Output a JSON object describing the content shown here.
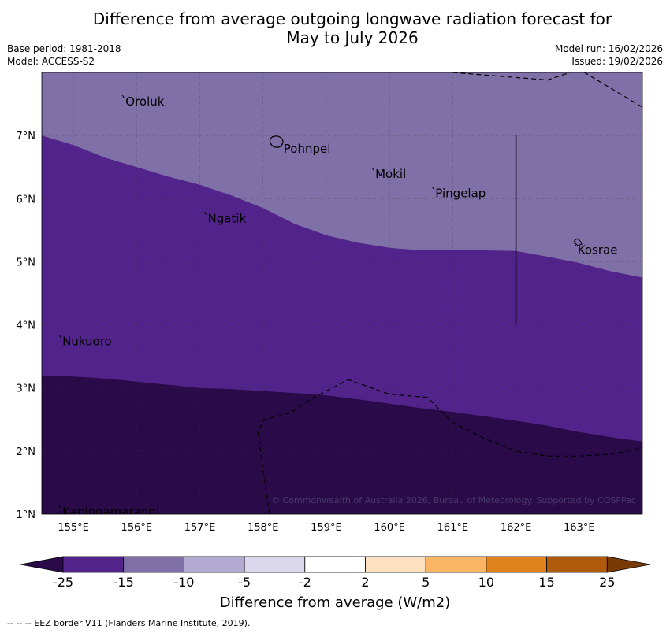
{
  "title": {
    "line1": "Difference from average outgoing longwave radiation forecast for",
    "line2": "May to July 2026"
  },
  "meta": {
    "base_period": "Base period: 1981-2018",
    "model": "Model: ACCESS-S2",
    "model_run": "Model run: 16/02/2026",
    "issued": "Issued: 19/02/2026"
  },
  "axes": {
    "lon_labels": [
      "155°E",
      "156°E",
      "157°E",
      "158°E",
      "159°E",
      "160°E",
      "161°E",
      "162°E",
      "163°E"
    ],
    "lon_values": [
      155,
      156,
      157,
      158,
      159,
      160,
      161,
      162,
      163
    ],
    "lat_labels": [
      "1°N",
      "2°N",
      "3°N",
      "4°N",
      "5°N",
      "6°N",
      "7°N"
    ],
    "lat_values": [
      1,
      2,
      3,
      4,
      5,
      6,
      7
    ],
    "lon_range": [
      154.5,
      164
    ],
    "lat_range": [
      1,
      8
    ]
  },
  "places": [
    {
      "name": "Oroluk",
      "lon": 155.8,
      "lat": 7.6
    },
    {
      "name": "Pohnpei",
      "lon": 158.3,
      "lat": 6.85
    },
    {
      "name": "Mokil",
      "lon": 159.75,
      "lat": 6.45
    },
    {
      "name": "Pingelap",
      "lon": 160.7,
      "lat": 6.15
    },
    {
      "name": "Ngatik",
      "lon": 157.1,
      "lat": 5.75
    },
    {
      "name": "Kosrae",
      "lon": 162.95,
      "lat": 5.25
    },
    {
      "name": "Nukuoro",
      "lon": 154.8,
      "lat": 3.8
    },
    {
      "name": "Kapingamarangi",
      "lon": 154.8,
      "lat": 1.1
    }
  ],
  "copyright": "© Commonwealth of Australia 2026, Bureau of Meteorology. Supported by COSPPac",
  "colorbar": {
    "ticks": [
      "-25",
      "-15",
      "-10",
      "-5",
      "-2",
      "2",
      "5",
      "10",
      "15",
      "25"
    ],
    "colors": [
      "#2b0a4a",
      "#52238a",
      "#7f71a8",
      "#b3aad2",
      "#dad7ec",
      "#ffffff",
      "#fde0bf",
      "#fbb564",
      "#e0831c",
      "#b05a0c",
      "#7a3a06"
    ],
    "label": "Difference from average (W/m2)"
  },
  "chart_data": {
    "type": "map-contour",
    "variable": "Difference from average outgoing longwave radiation (W/m2)",
    "regions": [
      {
        "band": "-15 to -10",
        "color": "#7f71a8",
        "description": "north of boundary A"
      },
      {
        "band": "-25 to -15",
        "color": "#52238a",
        "description": "between boundary A and B"
      },
      {
        "band": "< -25",
        "color": "#2b0a4a",
        "description": "south of boundary B"
      }
    ],
    "boundary_A": {
      "lon": [
        154.5,
        155.0,
        155.5,
        156.0,
        156.5,
        157.0,
        157.5,
        158.0,
        158.5,
        159.0,
        159.5,
        160.0,
        160.5,
        161.0,
        161.5,
        162.0,
        162.5,
        163.0,
        163.5,
        164.0
      ],
      "lat": [
        7.0,
        6.85,
        6.65,
        6.5,
        6.35,
        6.22,
        6.05,
        5.85,
        5.6,
        5.42,
        5.3,
        5.22,
        5.18,
        5.18,
        5.18,
        5.17,
        5.08,
        4.98,
        4.85,
        4.75
      ]
    },
    "boundary_B": {
      "lon": [
        154.5,
        155.0,
        155.5,
        156.0,
        156.5,
        157.0,
        157.5,
        158.0,
        158.5,
        159.0,
        159.5,
        160.0,
        160.5,
        161.0,
        161.5,
        162.0,
        162.5,
        163.0,
        163.5,
        164.0
      ],
      "lat": [
        3.2,
        3.18,
        3.15,
        3.1,
        3.05,
        3.0,
        2.98,
        2.95,
        2.92,
        2.88,
        2.82,
        2.75,
        2.68,
        2.62,
        2.55,
        2.48,
        2.4,
        2.3,
        2.22,
        2.15
      ]
    },
    "eez_border": [
      {
        "lon": [
          161.0,
          162.5,
          163.0,
          164.0
        ],
        "lat": [
          8.0,
          7.88,
          8.05,
          7.45
        ]
      },
      {
        "lon": [
          158.1,
          158.0,
          157.92,
          158.02,
          158.42,
          158.8,
          159.35,
          160.0,
          160.6,
          161.0,
          161.5,
          162.0,
          162.5,
          163.0,
          163.5,
          164.0
        ],
        "lat": [
          1.0,
          1.7,
          2.3,
          2.5,
          2.6,
          2.85,
          3.13,
          2.9,
          2.85,
          2.45,
          2.2,
          2.0,
          1.92,
          1.92,
          1.95,
          2.05
        ]
      }
    ],
    "vertical_line": {
      "lon": 162.0,
      "lat": [
        4.0,
        7.0
      ]
    }
  },
  "footnote": "--  --  -- EEZ border V11 (Flanders Marine Institute, 2019)."
}
